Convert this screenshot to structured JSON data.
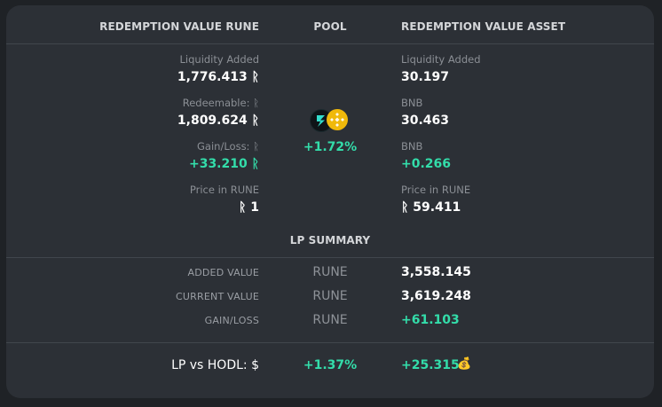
{
  "header": {
    "col_rune": "REDEMPTION VALUE RUNE",
    "col_pool": "POOL",
    "col_asset": "REDEMPTION VALUE ASSET"
  },
  "rune_side": {
    "liquidity_added_label": "Liquidity Added",
    "liquidity_added_value": "1,776.413 ᚱ",
    "redeemable_label": "Redeemable: ᚱ",
    "redeemable_value": "1,809.624 ᚱ",
    "gainloss_label": "Gain/Loss: ᚱ",
    "gainloss_value": "+33.210 ᚱ",
    "price_label": "Price in RUNE",
    "price_value": "ᚱ 1"
  },
  "pool": {
    "icons": [
      "thorchain-icon",
      "bnb-icon"
    ],
    "change": "+1.72%"
  },
  "asset_side": {
    "liquidity_added_label": "Liquidity Added",
    "liquidity_added_value": "30.197",
    "redeemable_label": "BNB",
    "redeemable_value": "30.463",
    "gainloss_label": "BNB",
    "gainloss_value": "+0.266",
    "price_label": "Price in RUNE",
    "price_value": "ᚱ 59.411"
  },
  "summary": {
    "title": "LP SUMMARY",
    "rows": [
      {
        "label": "ADDED VALUE",
        "unit": "RUNE",
        "value": "3,558.145"
      },
      {
        "label": "CURRENT VALUE",
        "unit": "RUNE",
        "value": "3,619.248"
      },
      {
        "label": "GAIN/LOSS",
        "unit": "RUNE",
        "value": "+61.103"
      }
    ]
  },
  "hodl": {
    "label": "LP vs HODL: $",
    "percent": "+1.37%",
    "value": "+25.315",
    "icon": "money-bag-icon"
  },
  "colors": {
    "background": "#1f2226",
    "card": "#2c3036",
    "positive": "#33ddaa",
    "bnb": "#f0b90b"
  }
}
